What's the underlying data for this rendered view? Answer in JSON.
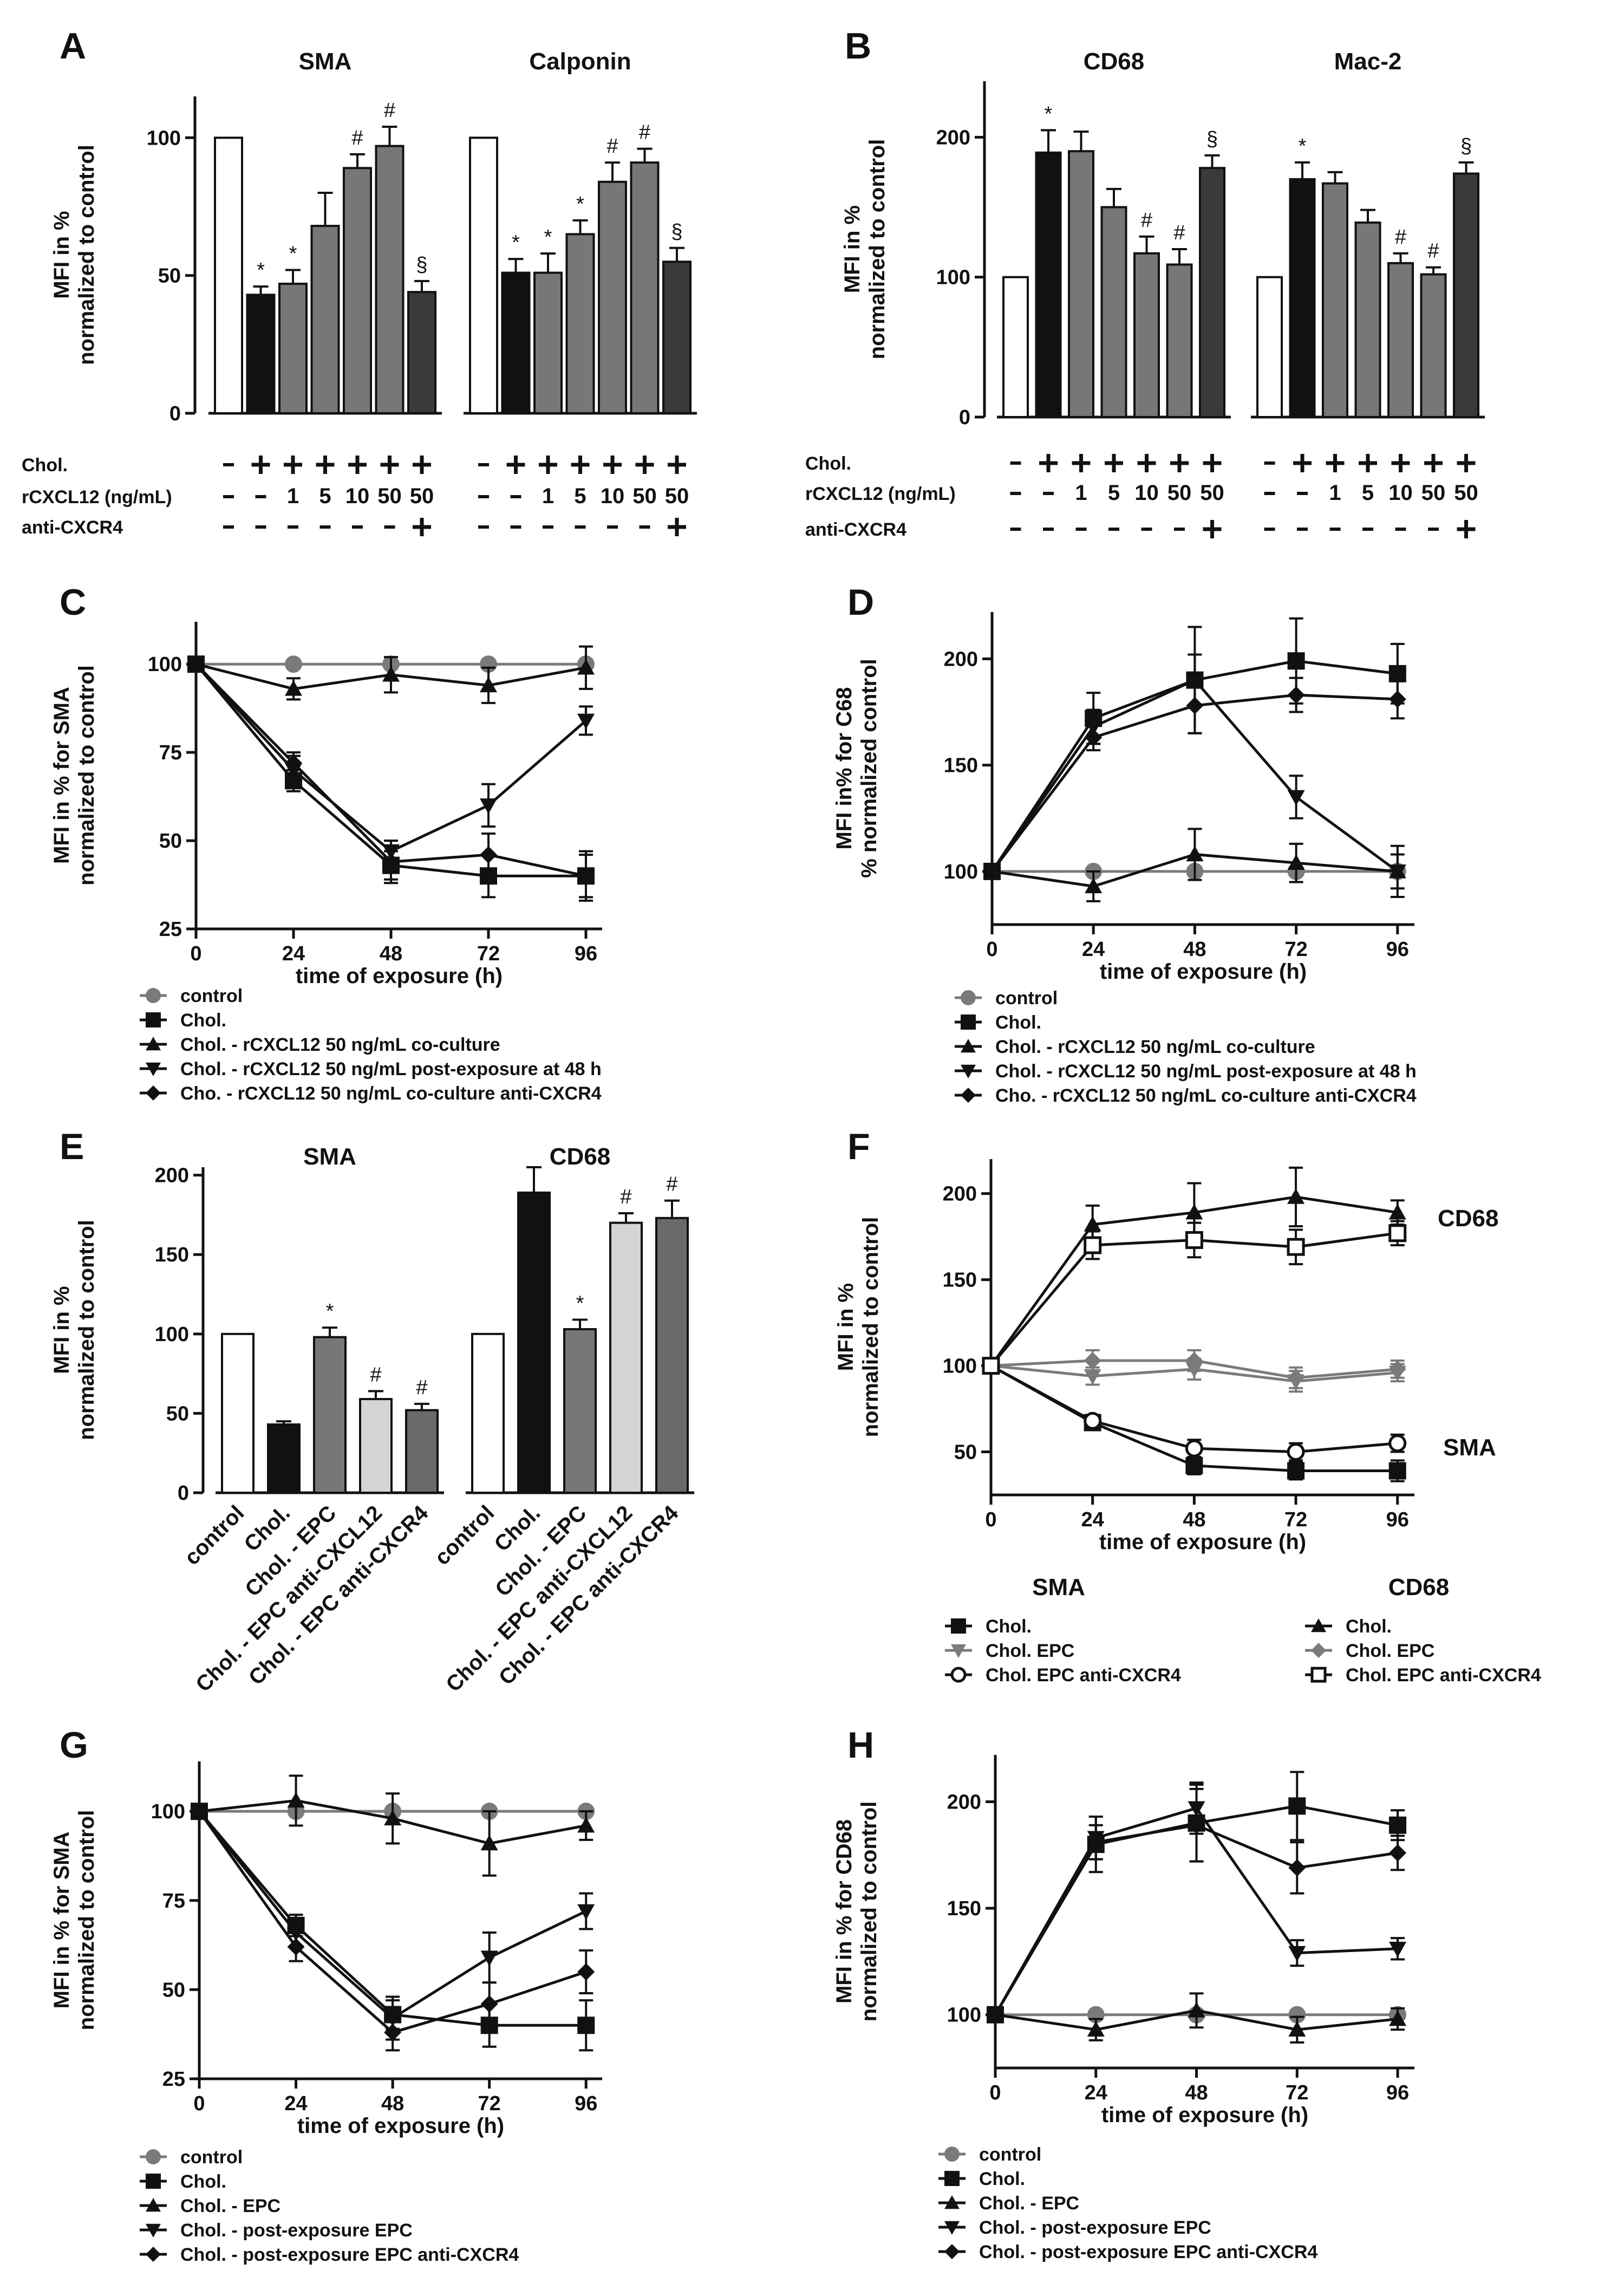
{
  "chart_data": [
    {
      "panel": "A",
      "type": "bar",
      "ylabel": "MFI in % normalized to control",
      "ylim": [
        0,
        115
      ],
      "yticks": [
        0,
        50,
        100
      ],
      "groups": [
        {
          "title": "SMA",
          "values": [
            100,
            43,
            47,
            68,
            89,
            97,
            44
          ],
          "errors": [
            0,
            3,
            5,
            12,
            5,
            7,
            4
          ],
          "annotations": [
            "",
            "*",
            "*",
            "",
            "#",
            "#",
            "§"
          ]
        },
        {
          "title": "Calponin",
          "values": [
            100,
            51,
            51,
            65,
            84,
            91,
            55
          ],
          "errors": [
            0,
            5,
            7,
            5,
            7,
            5,
            5
          ],
          "annotations": [
            "",
            "*",
            "*",
            "*",
            "#",
            "#",
            "§"
          ]
        }
      ],
      "conditions": [
        {
          "label": "Chol.",
          "values": [
            "-",
            "+",
            "+",
            "+",
            "+",
            "+",
            "+"
          ]
        },
        {
          "label": "rCXCL12 (ng/mL)",
          "values": [
            "-",
            "-",
            "1",
            "5",
            "10",
            "50",
            "50"
          ]
        },
        {
          "label": "anti-CXCR4",
          "values": [
            "-",
            "-",
            "-",
            "-",
            "-",
            "-",
            "+"
          ]
        }
      ]
    },
    {
      "panel": "B",
      "type": "bar",
      "ylabel": "MFI in % normalized to control",
      "ylim": [
        0,
        240
      ],
      "yticks": [
        0,
        100,
        200
      ],
      "groups": [
        {
          "title": "CD68",
          "values": [
            100,
            189,
            190,
            150,
            117,
            109,
            178
          ],
          "errors": [
            0,
            16,
            14,
            13,
            12,
            11,
            9
          ],
          "annotations": [
            "",
            "*",
            "",
            "",
            "#",
            "#",
            "§"
          ]
        },
        {
          "title": "Mac-2",
          "values": [
            100,
            170,
            167,
            139,
            110,
            102,
            174
          ],
          "errors": [
            0,
            12,
            8,
            9,
            7,
            5,
            8
          ],
          "annotations": [
            "",
            "*",
            "",
            "",
            "#",
            "#",
            "§"
          ]
        }
      ],
      "conditions": [
        {
          "label": "Chol.",
          "values": [
            "-",
            "+",
            "+",
            "+",
            "+",
            "+",
            "+"
          ]
        },
        {
          "label": "rCXCL12 (ng/mL)",
          "values": [
            "-",
            "-",
            "1",
            "5",
            "10",
            "50",
            "50"
          ]
        },
        {
          "label": "anti-CXCR4",
          "values": [
            "-",
            "-",
            "-",
            "-",
            "-",
            "-",
            "+"
          ]
        }
      ]
    },
    {
      "panel": "C",
      "type": "line",
      "xlabel": "time of exposure (h)",
      "ylabel": "MFI in % for SMA normalized to control",
      "x": [
        0,
        24,
        48,
        72,
        96
      ],
      "xlim": [
        0,
        100
      ],
      "ylim": [
        25,
        112
      ],
      "yticks": [
        25,
        50,
        75,
        100
      ],
      "series": [
        {
          "name": "control",
          "marker": "circle",
          "color": "#7a7a7a",
          "values": [
            100,
            100,
            100,
            100,
            100
          ],
          "errors": [
            0,
            0,
            0,
            0,
            0
          ]
        },
        {
          "name": "Chol.",
          "marker": "square",
          "color": "#111111",
          "values": [
            100,
            67,
            43,
            40,
            40
          ],
          "errors": [
            0,
            3,
            4,
            6,
            7
          ]
        },
        {
          "name": "Chol. - rCXCL12 50 ng/mL co-culture",
          "marker": "triangle",
          "color": "#111111",
          "values": [
            100,
            93,
            97,
            94,
            99
          ],
          "errors": [
            0,
            3,
            5,
            5,
            6
          ]
        },
        {
          "name": "Chol. - rCXCL12 50 ng/mL post-exposure at 48 h",
          "marker": "triangle-down",
          "color": "#111111",
          "values": [
            100,
            70,
            47,
            60,
            84
          ],
          "errors": [
            0,
            4,
            3,
            6,
            4
          ]
        },
        {
          "name": "Cho. - rCXCL12 50 ng/mL co-culture anti-CXCR4",
          "marker": "diamond",
          "color": "#111111",
          "values": [
            100,
            72,
            44,
            46,
            40
          ],
          "errors": [
            0,
            3,
            6,
            6,
            6
          ]
        }
      ]
    },
    {
      "panel": "D",
      "type": "line",
      "xlabel": "time of exposure (h)",
      "ylabel": "MFI in% for C68 % normalized control",
      "x": [
        0,
        24,
        48,
        72,
        96
      ],
      "xlim": [
        0,
        100
      ],
      "ylim": [
        75,
        222
      ],
      "yticks": [
        100,
        150,
        200
      ],
      "series": [
        {
          "name": "control",
          "marker": "circle",
          "color": "#7a7a7a",
          "values": [
            100,
            100,
            100,
            100,
            100
          ],
          "errors": [
            0,
            0,
            0,
            0,
            0
          ]
        },
        {
          "name": "Chol.",
          "marker": "square",
          "color": "#111111",
          "values": [
            100,
            172,
            190,
            199,
            193
          ],
          "errors": [
            0,
            12,
            25,
            20,
            14
          ]
        },
        {
          "name": "Chol. - rCXCL12 50 ng/mL co-culture",
          "marker": "triangle",
          "color": "#111111",
          "values": [
            100,
            93,
            108,
            104,
            100
          ],
          "errors": [
            0,
            7,
            12,
            9,
            8
          ]
        },
        {
          "name": "Chol. - rCXCL12 50 ng/mL post-exposure at 48 h",
          "marker": "triangle-down",
          "color": "#111111",
          "values": [
            100,
            168,
            190,
            135,
            100
          ],
          "errors": [
            0,
            8,
            12,
            10,
            12
          ]
        },
        {
          "name": "Cho. - rCXCL12 50 ng/mL co-culture anti-CXCR4",
          "marker": "diamond",
          "color": "#111111",
          "values": [
            100,
            163,
            178,
            183,
            181
          ],
          "errors": [
            0,
            6,
            13,
            8,
            9
          ]
        }
      ]
    },
    {
      "panel": "E",
      "type": "bar",
      "ylabel": "MFI in % normalized to control",
      "ylim": [
        0,
        205
      ],
      "yticks": [
        0,
        50,
        100,
        150,
        200
      ],
      "categories": [
        "control",
        "Chol.",
        "Chol. - EPC",
        "Chol. - EPC anti-CXCL12",
        "Chol. - EPC anti-CXCR4"
      ],
      "groups": [
        {
          "title": "SMA",
          "values": [
            100,
            43,
            98,
            59,
            52
          ],
          "errors": [
            0,
            2,
            6,
            5,
            4
          ],
          "annotations": [
            "",
            "",
            "*",
            "#",
            "#"
          ]
        },
        {
          "title": "CD68",
          "values": [
            100,
            189,
            103,
            170,
            173
          ],
          "errors": [
            0,
            16,
            6,
            6,
            11
          ],
          "annotations": [
            "",
            "",
            "*",
            "#",
            "#"
          ]
        }
      ]
    },
    {
      "panel": "F",
      "type": "line",
      "xlabel": "time of exposure (h)",
      "ylabel": "MFI in % normalized to control",
      "x": [
        0,
        24,
        48,
        72,
        96
      ],
      "xlim": [
        0,
        100
      ],
      "ylim": [
        25,
        220
      ],
      "yticks": [
        50,
        100,
        150,
        200
      ],
      "curve_labels": [
        "CD68",
        "SMA"
      ],
      "legend_titles": [
        "SMA",
        "CD68"
      ],
      "series": [
        {
          "name": "Chol.",
          "group": "SMA",
          "marker": "square",
          "color": "#111111",
          "values": [
            100,
            67,
            42,
            39,
            39
          ],
          "errors": [
            0,
            3,
            5,
            5,
            6
          ]
        },
        {
          "name": "Chol. EPC",
          "group": "SMA",
          "marker": "triangle-down",
          "color": "#7a7a7a",
          "values": [
            100,
            94,
            98,
            91,
            96
          ],
          "errors": [
            0,
            5,
            6,
            6,
            5
          ]
        },
        {
          "name": "Chol. EPC anti-CXCR4",
          "group": "SMA",
          "marker": "open-circle",
          "color": "#111111",
          "values": [
            100,
            68,
            52,
            50,
            55
          ],
          "errors": [
            0,
            3,
            5,
            5,
            5
          ]
        },
        {
          "name": "Chol.",
          "group": "CD68",
          "marker": "triangle",
          "color": "#111111",
          "values": [
            100,
            182,
            189,
            198,
            189
          ],
          "errors": [
            0,
            11,
            17,
            17,
            7
          ]
        },
        {
          "name": "Chol. EPC",
          "group": "CD68",
          "marker": "diamond",
          "color": "#7a7a7a",
          "values": [
            100,
            103,
            103,
            93,
            98
          ],
          "errors": [
            0,
            6,
            6,
            6,
            5
          ]
        },
        {
          "name": "Chol. EPC anti-CXCR4",
          "group": "CD68",
          "marker": "open-square",
          "color": "#111111",
          "values": [
            100,
            170,
            173,
            169,
            177
          ],
          "errors": [
            0,
            8,
            10,
            10,
            7
          ]
        }
      ]
    },
    {
      "panel": "G",
      "type": "line",
      "xlabel": "time of exposure (h)",
      "ylabel": "MFI in % for SMA normalized to control",
      "x": [
        0,
        24,
        48,
        72,
        96
      ],
      "xlim": [
        0,
        100
      ],
      "ylim": [
        25,
        114
      ],
      "yticks": [
        25,
        50,
        75,
        100
      ],
      "series": [
        {
          "name": "control",
          "marker": "circle",
          "color": "#7a7a7a",
          "values": [
            100,
            100,
            100,
            100,
            100
          ],
          "errors": [
            0,
            0,
            0,
            0,
            0
          ]
        },
        {
          "name": "Chol.",
          "marker": "square",
          "color": "#111111",
          "values": [
            100,
            68,
            43,
            40,
            40
          ],
          "errors": [
            0,
            3,
            4,
            6,
            7
          ]
        },
        {
          "name": "Chol. - EPC",
          "marker": "triangle",
          "color": "#111111",
          "values": [
            100,
            103,
            98,
            91,
            96
          ],
          "errors": [
            0,
            7,
            7,
            9,
            4
          ]
        },
        {
          "name": "Chol. - post-exposure EPC",
          "marker": "triangle-down",
          "color": "#111111",
          "values": [
            100,
            66,
            42,
            59,
            72
          ],
          "errors": [
            0,
            4,
            6,
            7,
            5
          ]
        },
        {
          "name": "Chol. - post-exposure EPC anti-CXCR4",
          "marker": "diamond",
          "color": "#111111",
          "values": [
            100,
            62,
            38,
            46,
            55
          ],
          "errors": [
            0,
            4,
            5,
            6,
            6
          ]
        }
      ]
    },
    {
      "panel": "H",
      "type": "line",
      "xlabel": "time of exposure (h)",
      "ylabel": "MFI in % for CD68 normalized to control",
      "x": [
        0,
        24,
        48,
        72,
        96
      ],
      "xlim": [
        0,
        100
      ],
      "ylim": [
        75,
        222
      ],
      "yticks": [
        100,
        150,
        200
      ],
      "series": [
        {
          "name": "control",
          "marker": "circle",
          "color": "#7a7a7a",
          "values": [
            100,
            100,
            100,
            100,
            100
          ],
          "errors": [
            0,
            0,
            0,
            0,
            0
          ]
        },
        {
          "name": "Chol.",
          "marker": "square",
          "color": "#111111",
          "values": [
            100,
            180,
            190,
            198,
            189
          ],
          "errors": [
            0,
            13,
            18,
            16,
            7
          ]
        },
        {
          "name": "Chol. - EPC",
          "marker": "triangle",
          "color": "#111111",
          "values": [
            100,
            93,
            102,
            93,
            98
          ],
          "errors": [
            0,
            5,
            8,
            6,
            5
          ]
        },
        {
          "name": "Chol. - post-exposure EPC",
          "marker": "triangle-down",
          "color": "#111111",
          "values": [
            100,
            183,
            197,
            129,
            131
          ],
          "errors": [
            0,
            10,
            12,
            6,
            5
          ]
        },
        {
          "name": "Chol. - post-exposure EPC anti-CXCR4",
          "marker": "diamond",
          "color": "#111111",
          "values": [
            100,
            181,
            189,
            169,
            176
          ],
          "errors": [
            0,
            8,
            17,
            12,
            8
          ]
        }
      ]
    }
  ]
}
